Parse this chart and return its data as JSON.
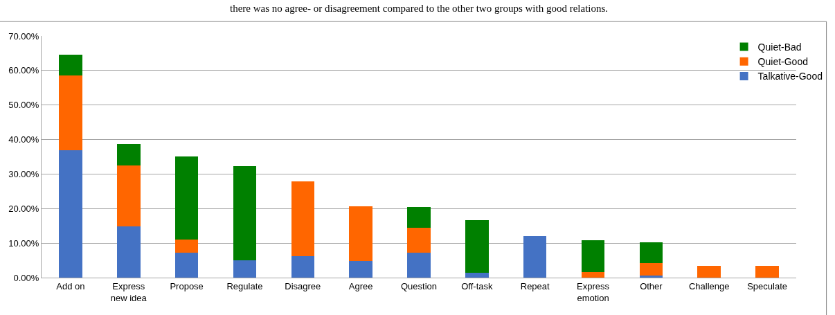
{
  "chart_data": {
    "type": "bar",
    "stacked": true,
    "annotations": [
      "there was no agree- or disagreement compared to the other two groups with good relations."
    ],
    "categories": [
      "Add on",
      "Express\nnew idea",
      "Propose",
      "Regulate",
      "Disagree",
      "Agree",
      "Question",
      "Off-task",
      "Repeat",
      "Express\nemotion",
      "Other",
      "Challenge",
      "Speculate"
    ],
    "series": [
      {
        "name": "Talkative-Good",
        "color": "#4472c4",
        "values": [
          37.0,
          14.8,
          7.2,
          5.0,
          6.3,
          4.8,
          7.2,
          1.5,
          12.0,
          0,
          0.6,
          0,
          0
        ]
      },
      {
        "name": "Quiet-Good",
        "color": "#ff6600",
        "values": [
          21.5,
          17.7,
          3.8,
          0,
          21.5,
          15.9,
          7.2,
          0,
          0,
          1.7,
          3.7,
          3.5,
          3.5
        ]
      },
      {
        "name": "Quiet-Bad",
        "color": "#008000",
        "values": [
          6.0,
          6.2,
          24.2,
          27.3,
          0,
          0,
          6.0,
          15.1,
          0,
          9.2,
          6.0,
          0,
          0
        ]
      }
    ],
    "ylim": [
      0,
      70
    ],
    "yticks": [
      {
        "value": 0,
        "label": "0.00%"
      },
      {
        "value": 10,
        "label": "10.00%"
      },
      {
        "value": 20,
        "label": "20.00%"
      },
      {
        "value": 30,
        "label": "30.00%"
      },
      {
        "value": 40,
        "label": "40.00%"
      },
      {
        "value": 50,
        "label": "50.00%"
      },
      {
        "value": 60,
        "label": "60.00%"
      },
      {
        "value": 70,
        "label": "70.00%"
      }
    ],
    "grid": "y",
    "legend": "top right"
  }
}
